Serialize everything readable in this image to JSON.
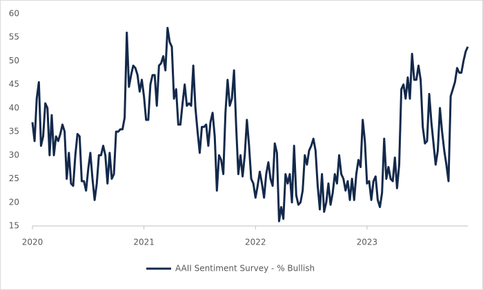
{
  "chart_data": {
    "type": "line",
    "categories": [
      "2020",
      null,
      null,
      null,
      null,
      null,
      null,
      null,
      null,
      null,
      null,
      null,
      null,
      null,
      null,
      null,
      null,
      null,
      null,
      null,
      null,
      null,
      null,
      null,
      null,
      null,
      null,
      null,
      null,
      null,
      null,
      null,
      null,
      null,
      null,
      null,
      null,
      null,
      null,
      null,
      null,
      null,
      null,
      null,
      null,
      null,
      null,
      null,
      null,
      null,
      null,
      null,
      "2021",
      null,
      null,
      null,
      null,
      null,
      null,
      null,
      null,
      null,
      null,
      null,
      null,
      null,
      null,
      null,
      null,
      null,
      null,
      null,
      null,
      null,
      null,
      null,
      null,
      null,
      null,
      null,
      null,
      null,
      null,
      null,
      null,
      null,
      null,
      null,
      null,
      null,
      null,
      null,
      null,
      null,
      null,
      null,
      null,
      null,
      null,
      null,
      null,
      null,
      null,
      null,
      "2022",
      null,
      null,
      null,
      null,
      null,
      null,
      null,
      null,
      null,
      null,
      null,
      null,
      null,
      null,
      null,
      null,
      null,
      null,
      null,
      null,
      null,
      null,
      null,
      null,
      null,
      null,
      null,
      null,
      null,
      null,
      null,
      null,
      null,
      null,
      null,
      null,
      null,
      null,
      null,
      null,
      null,
      null,
      null,
      null,
      null,
      null,
      null,
      null,
      null,
      null,
      null,
      "2023",
      null,
      null,
      null,
      null,
      null,
      null,
      null,
      null,
      null,
      null,
      null,
      null,
      null,
      null,
      null,
      null,
      null,
      null,
      null,
      null,
      null,
      null,
      null,
      null,
      null,
      null,
      null,
      null,
      null,
      null,
      null,
      null,
      null,
      null,
      null,
      null,
      null,
      null,
      null,
      null,
      null,
      null,
      null,
      null,
      null,
      null,
      null
    ],
    "series": [
      {
        "name": "AAII Sentiment Survey - % Bullish",
        "color": "#13294b",
        "values": [
          37,
          33,
          42,
          45.5,
          32,
          34,
          41,
          40,
          30,
          38.5,
          30,
          34,
          33,
          34.5,
          36.5,
          35,
          25,
          30.5,
          24,
          23.5,
          30,
          34.5,
          34,
          24.5,
          24.5,
          22.5,
          27,
          30.5,
          25,
          20.5,
          24,
          30,
          30,
          32,
          30,
          24,
          30.5,
          25,
          26,
          35,
          35,
          35.5,
          35.5,
          38,
          56,
          44.5,
          47,
          49,
          48.5,
          47,
          43.5,
          46,
          42.5,
          37.5,
          37.5,
          45,
          47,
          47,
          40.5,
          49,
          49.5,
          51,
          48,
          57,
          54,
          53,
          42,
          44,
          36.5,
          36.5,
          41,
          45,
          40.5,
          41,
          40.5,
          49,
          40,
          35,
          30.5,
          36,
          36,
          36.5,
          32,
          37,
          39,
          34,
          22.5,
          30,
          29,
          26,
          39,
          46,
          40.5,
          42,
          48,
          36,
          26,
          30,
          25.5,
          30,
          37.5,
          32,
          25,
          24,
          21,
          23.5,
          26.5,
          24,
          21,
          26,
          28.5,
          25,
          23.5,
          32.5,
          30.5,
          16,
          19,
          16.5,
          26,
          24,
          26,
          20,
          32,
          21.5,
          19.5,
          20,
          22.5,
          30,
          28,
          31,
          32,
          33.5,
          31,
          23.5,
          18.5,
          26,
          18,
          20,
          24,
          19.5,
          22,
          26,
          24,
          30,
          26,
          25,
          22.5,
          24.5,
          20.5,
          25,
          20.5,
          26,
          29,
          27.5,
          37.5,
          33,
          24,
          24.5,
          20.5,
          24.5,
          25.5,
          20.5,
          19,
          22,
          33.5,
          25,
          27.5,
          25,
          24.5,
          29.5,
          23,
          28,
          44,
          45,
          42,
          46.5,
          42,
          51.5,
          46,
          46,
          49,
          46,
          36,
          32.5,
          33,
          43,
          37,
          32.5,
          28,
          31,
          40,
          35,
          31,
          28,
          24.5,
          42.5,
          44,
          45.5,
          48.5,
          47.5,
          47.5,
          50,
          52,
          53
        ]
      }
    ],
    "ylim": [
      15,
      60
    ],
    "yticks": [
      15,
      20,
      25,
      30,
      35,
      40,
      45,
      50,
      55,
      60
    ],
    "grid": false,
    "legend": "bottom"
  }
}
